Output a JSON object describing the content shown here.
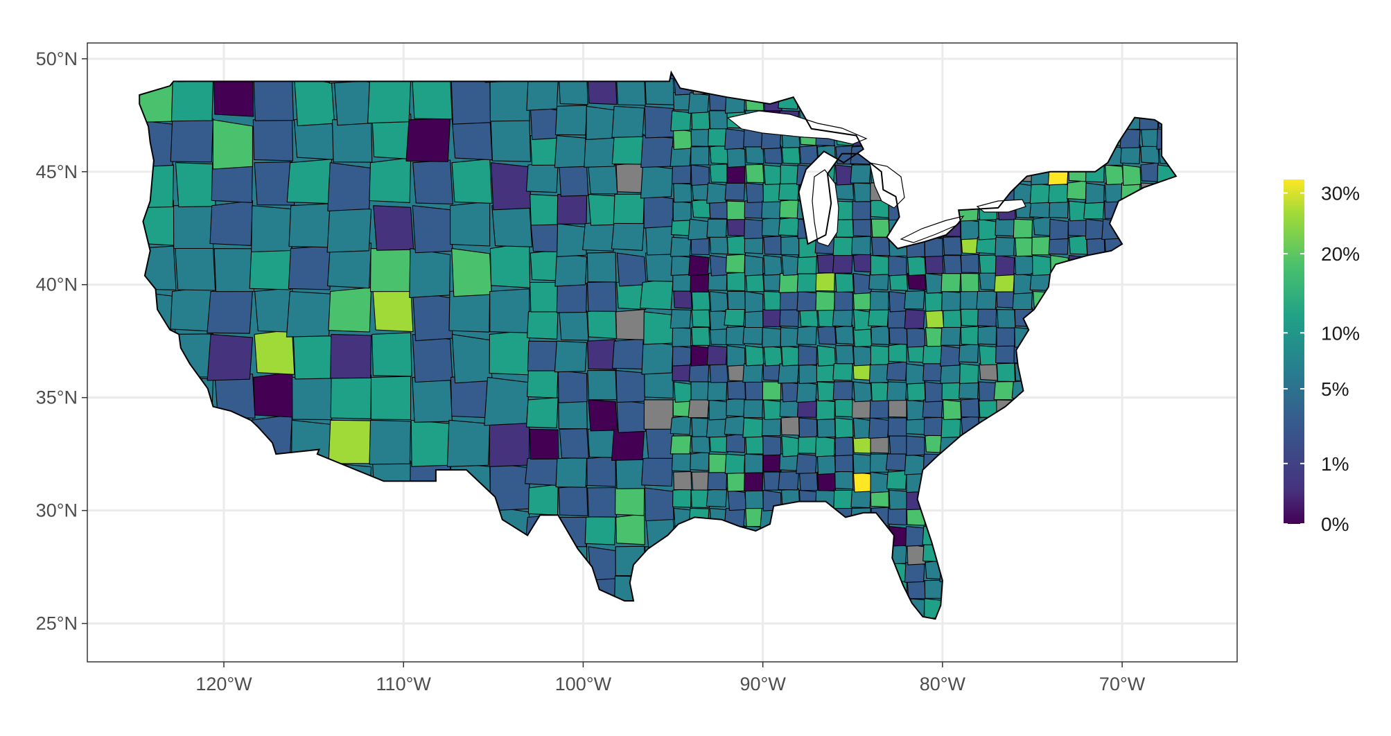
{
  "map": {
    "projection": "longitude/latitude",
    "region": "contiguous United States",
    "fill_variable_scale": "viridis",
    "missing_fill": "#808080",
    "lon_range": [
      -127.6,
      -63.6
    ],
    "lat_range": [
      23.3,
      50.7
    ],
    "grid": true
  },
  "axes": {
    "x_ticks": [
      {
        "value": -120,
        "label": "120°W"
      },
      {
        "value": -110,
        "label": "110°W"
      },
      {
        "value": -100,
        "label": "100°W"
      },
      {
        "value": -90,
        "label": "90°W"
      },
      {
        "value": -80,
        "label": "80°W"
      },
      {
        "value": -70,
        "label": "70°W"
      }
    ],
    "y_ticks": [
      {
        "value": 50,
        "label": "50°N"
      },
      {
        "value": 45,
        "label": "45°N"
      },
      {
        "value": 40,
        "label": "40°N"
      },
      {
        "value": 35,
        "label": "35°N"
      },
      {
        "value": 30,
        "label": "30°N"
      },
      {
        "value": 25,
        "label": "25°N"
      }
    ]
  },
  "legend": {
    "placement": "right",
    "colors": [
      "#440154",
      "#46337e",
      "#365c8d",
      "#277f8e",
      "#1fa187",
      "#4ac16d",
      "#a0da39",
      "#fde725"
    ],
    "breaks": [
      {
        "value": 0.0,
        "label": "0%"
      },
      {
        "value": 0.01,
        "label": "1%"
      },
      {
        "value": 0.05,
        "label": "5%"
      },
      {
        "value": 0.1,
        "label": "10%"
      },
      {
        "value": 0.2,
        "label": "20%"
      },
      {
        "value": 0.3,
        "label": "30%"
      }
    ]
  }
}
